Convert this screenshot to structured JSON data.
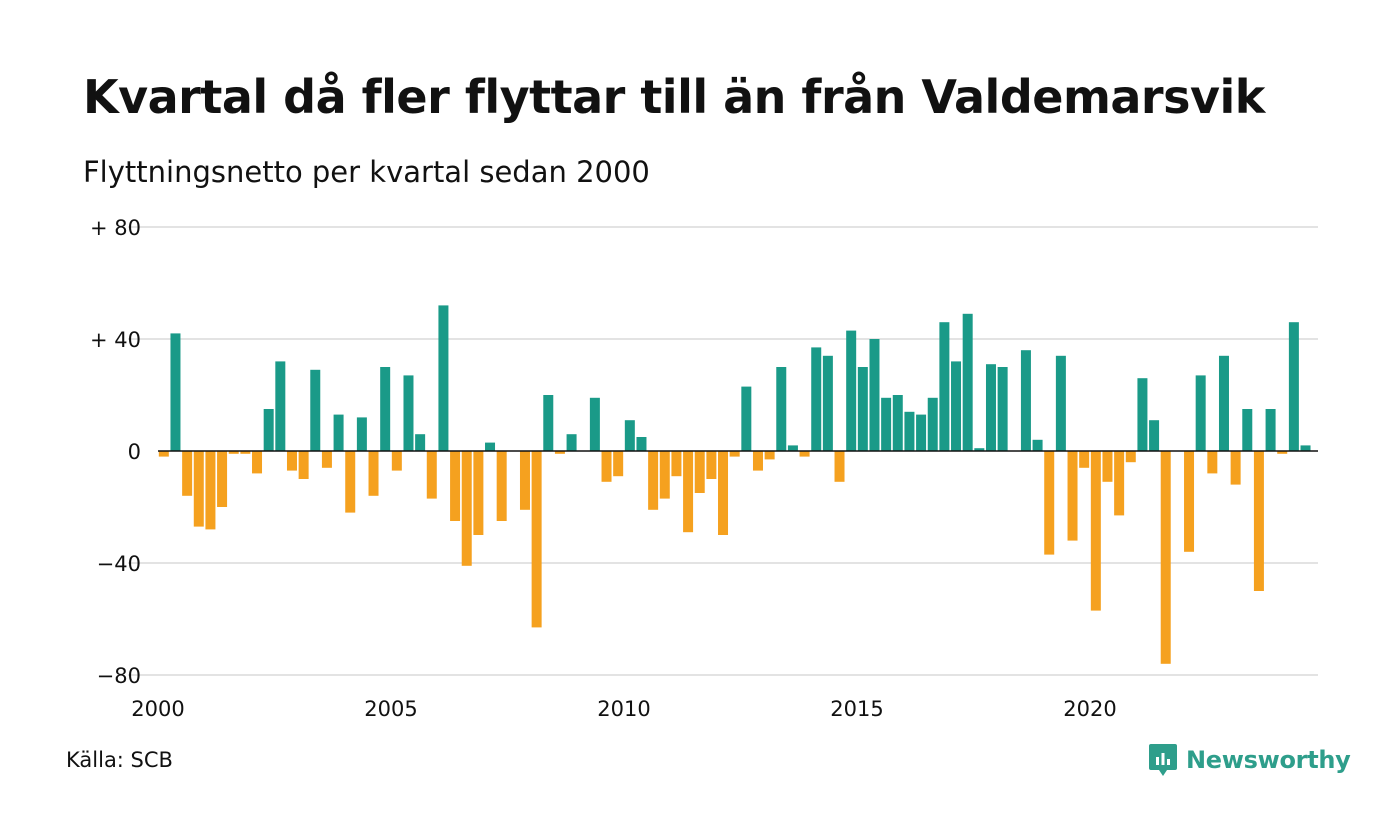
{
  "title": "Kvartal då fler flyttar till än från Valdemarsvik",
  "subtitle": "Flyttningsnetto per kvartal sedan 2000",
  "source": "Källa: SCB",
  "brand": {
    "name": "Newsworthy",
    "icon": "newsworthy-logo-icon",
    "color": "#2e9e8b"
  },
  "colors": {
    "positive": "#1a9a88",
    "negative": "#f5a11f",
    "grid": "#e3e3e3",
    "baseline": "#111111"
  },
  "chart_data": {
    "type": "bar",
    "x_start_year": 2000,
    "quarters_per_year": 4,
    "ylim": [
      -80,
      80
    ],
    "yticks": [
      {
        "value": 80,
        "label": "+ 80"
      },
      {
        "value": 40,
        "label": "+ 40"
      },
      {
        "value": 0,
        "label": "0"
      },
      {
        "value": -40,
        "label": "−40"
      },
      {
        "value": -80,
        "label": "−80"
      }
    ],
    "xticks": [
      {
        "value": 2000,
        "label": "2000"
      },
      {
        "value": 2005,
        "label": "2005"
      },
      {
        "value": 2010,
        "label": "2010"
      },
      {
        "value": 2015,
        "label": "2015"
      },
      {
        "value": 2020,
        "label": "2020"
      }
    ],
    "grid": true,
    "values": [
      -2,
      42,
      -16,
      -27,
      -28,
      -20,
      -1,
      -1,
      -8,
      15,
      32,
      -7,
      -10,
      29,
      -6,
      13,
      -22,
      12,
      -16,
      30,
      -7,
      27,
      6,
      -17,
      52,
      -25,
      -41,
      -30,
      3,
      -25,
      0,
      -21,
      -63,
      20,
      -1,
      6,
      0,
      19,
      -11,
      -9,
      11,
      5,
      -21,
      -17,
      -9,
      -29,
      -15,
      -10,
      -30,
      -2,
      23,
      -7,
      -3,
      30,
      2,
      -2,
      37,
      34,
      -11,
      43,
      30,
      40,
      19,
      20,
      14,
      13,
      19,
      46,
      32,
      49,
      1,
      31,
      30,
      0,
      36,
      4,
      -37,
      34,
      -32,
      -6,
      -57,
      -11,
      -23,
      -4,
      26,
      11,
      -76,
      0,
      -36,
      27,
      -8,
      34,
      -12,
      15,
      -50,
      15,
      -1,
      46,
      2
    ]
  }
}
